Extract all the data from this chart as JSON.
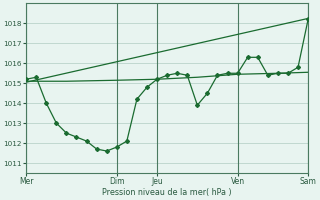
{
  "background_color": "#e8f4f0",
  "grid_color": "#c0d8d0",
  "line_color": "#1a6b30",
  "vline_color": "#4a7a60",
  "text_color": "#2a5a40",
  "ylabel_ticks": [
    1011,
    1012,
    1013,
    1014,
    1015,
    1016,
    1017,
    1018
  ],
  "ylim": [
    1010.5,
    1019.0
  ],
  "xlabel": "Pression niveau de la mer( hPa )",
  "day_labels": [
    "Mer",
    "",
    "Dim",
    "Jeu",
    "",
    "Ven",
    "",
    "Sam"
  ],
  "day_positions": [
    0,
    5,
    9,
    13,
    17,
    21,
    24,
    28
  ],
  "vertical_lines": [
    0,
    9,
    13,
    21,
    28
  ],
  "xlim": [
    0,
    28
  ],
  "s1_x": [
    0,
    1,
    2,
    3,
    4,
    5,
    6,
    7,
    8,
    9,
    10,
    11,
    12,
    13,
    14,
    15,
    16,
    17,
    18,
    19,
    20,
    21,
    22,
    23,
    24,
    25,
    26,
    27,
    28
  ],
  "s1_y": [
    1015.2,
    1015.3,
    1014.0,
    1013.0,
    1012.5,
    1012.3,
    1012.1,
    1011.7,
    1011.6,
    1011.8,
    1012.1,
    1014.2,
    1014.8,
    1015.2,
    1015.4,
    1015.5,
    1015.4,
    1013.9,
    1014.5,
    1015.4,
    1015.5,
    1015.5,
    1016.3,
    1016.3,
    1015.4,
    1015.5,
    1015.5,
    1015.8,
    1018.2
  ],
  "trend_x": [
    0,
    28
  ],
  "trend_y": [
    1015.05,
    1018.25
  ],
  "flat_x": [
    0,
    4,
    9,
    13,
    17,
    21,
    25,
    28
  ],
  "flat_y": [
    1015.1,
    1015.1,
    1015.15,
    1015.2,
    1015.3,
    1015.45,
    1015.5,
    1015.55
  ]
}
